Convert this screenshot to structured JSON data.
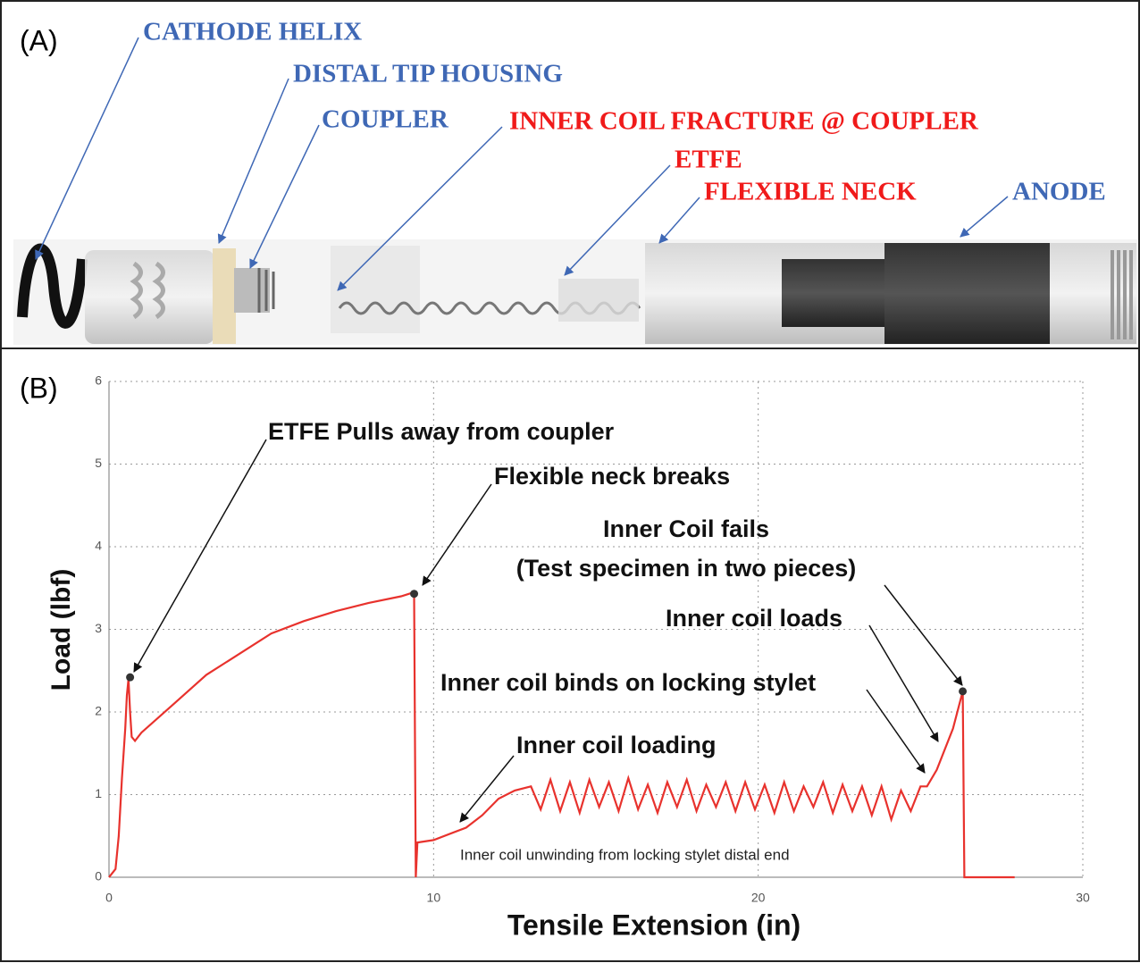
{
  "panel_a": {
    "label": "(A)",
    "labels": [
      {
        "text": "CATHODE HELIX",
        "color": "#3f68b5"
      },
      {
        "text": "DISTAL TIP HOUSING",
        "color": "#3f68b5"
      },
      {
        "text": "COUPLER",
        "color": "#3f68b5"
      },
      {
        "text": "INNER COIL  FRACTURE @ COUPLER",
        "color": "#f01a1a"
      },
      {
        "text": "ETFE",
        "color": "#f01a1a"
      },
      {
        "text": "FLEXIBLE NECK",
        "color": "#f01a1a"
      },
      {
        "text": "ANODE",
        "color": "#3f68b5"
      }
    ]
  },
  "chart_data": {
    "type": "line",
    "label": "(B)",
    "x_label": "Tensile Extension (in)",
    "y_label": "Load (lbf)",
    "xlim": [
      0,
      30
    ],
    "ylim": [
      0,
      6
    ],
    "xticks": [
      0,
      10,
      20,
      30
    ],
    "yticks": [
      0,
      1,
      2,
      3,
      4,
      5,
      6
    ],
    "grid": true,
    "x": [
      0,
      0.2,
      0.3,
      0.4,
      0.5,
      0.55,
      0.6,
      0.65,
      0.7,
      0.8,
      1,
      2,
      3,
      4,
      5,
      6,
      7,
      8,
      9,
      9.4,
      9.45,
      9.5,
      10,
      11,
      11.5,
      12,
      12.5,
      13,
      13.3,
      13.6,
      13.9,
      14.2,
      14.5,
      14.8,
      15.1,
      15.4,
      15.7,
      16.0,
      16.3,
      16.6,
      16.9,
      17.2,
      17.5,
      17.8,
      18.1,
      18.4,
      18.7,
      19.0,
      19.3,
      19.6,
      19.9,
      20.2,
      20.5,
      20.8,
      21.1,
      21.4,
      21.7,
      22.0,
      22.3,
      22.6,
      22.9,
      23.2,
      23.5,
      23.8,
      24.1,
      24.4,
      24.7,
      25.0,
      25.2,
      25.5,
      26,
      26.3,
      26.35,
      27.9
    ],
    "series": [
      {
        "color": "#e8322d",
        "values": [
          0,
          0.1,
          0.5,
          1.2,
          1.8,
          2.2,
          2.4,
          2.0,
          1.7,
          1.65,
          1.75,
          2.1,
          2.45,
          2.7,
          2.95,
          3.1,
          3.22,
          3.32,
          3.4,
          3.45,
          0,
          0.42,
          0.45,
          0.6,
          0.75,
          0.95,
          1.05,
          1.1,
          0.82,
          1.18,
          0.8,
          1.15,
          0.78,
          1.18,
          0.85,
          1.15,
          0.8,
          1.2,
          0.82,
          1.12,
          0.78,
          1.15,
          0.85,
          1.18,
          0.8,
          1.12,
          0.85,
          1.15,
          0.8,
          1.15,
          0.82,
          1.12,
          0.78,
          1.15,
          0.8,
          1.1,
          0.85,
          1.15,
          0.78,
          1.12,
          0.8,
          1.1,
          0.75,
          1.1,
          0.7,
          1.05,
          0.8,
          1.1,
          1.1,
          1.3,
          1.8,
          2.25,
          0,
          0
        ]
      }
    ],
    "markers": {
      "color": "#333333",
      "x": [
        0.65,
        9.4,
        26.3
      ],
      "values": [
        2.42,
        3.43,
        2.25
      ]
    },
    "annotations": [
      "ETFE Pulls away from coupler",
      "Flexible neck breaks",
      "Inner Coil fails",
      "(Test specimen in two pieces)",
      "Inner coil loads",
      "Inner coil binds on locking stylet",
      "Inner coil loading",
      "Inner coil unwinding from locking stylet distal end"
    ]
  }
}
